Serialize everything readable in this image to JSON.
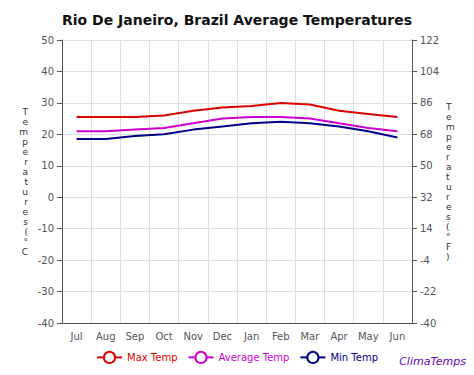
{
  "chart_data": {
    "type": "line",
    "title": "Rio De Janeiro, Brazil Average Temperatures",
    "categories": [
      "Jul",
      "Aug",
      "Sep",
      "Oct",
      "Nov",
      "Dec",
      "Jan",
      "Feb",
      "Mar",
      "Apr",
      "May",
      "Jun"
    ],
    "series": [
      {
        "name": "Max Temp",
        "color": "#dd0000",
        "values": [
          25.5,
          25.5,
          25.5,
          26.0,
          27.5,
          28.5,
          29.0,
          30.0,
          29.5,
          27.5,
          26.5,
          25.5
        ]
      },
      {
        "name": "Average Temp",
        "color": "#cc00cc",
        "values": [
          21.0,
          21.0,
          21.5,
          22.0,
          23.5,
          25.0,
          25.5,
          25.5,
          25.0,
          23.5,
          22.0,
          21.0
        ]
      },
      {
        "name": "Min Temp",
        "color": "#000088",
        "values": [
          18.5,
          18.5,
          19.5,
          20.0,
          21.5,
          22.5,
          23.5,
          24.0,
          23.5,
          22.5,
          21.0,
          19.0
        ]
      }
    ],
    "ylabel": "Temperatures(°C",
    "y2label": "Temperatures(°F)",
    "ylim": [
      -40,
      50
    ],
    "yticks": [
      -40,
      -30,
      -20,
      -10,
      0,
      10,
      20,
      30,
      40,
      50
    ],
    "y2lim": [
      -40.0,
      122.0
    ],
    "y2ticks": [
      -40.0,
      -22.0,
      -4.0,
      14.0,
      32.0,
      50.0,
      68.0,
      86.0,
      104.0,
      122.0
    ],
    "annotations": [
      "ClimaTemps"
    ],
    "grid": true,
    "legend": "bottom"
  }
}
